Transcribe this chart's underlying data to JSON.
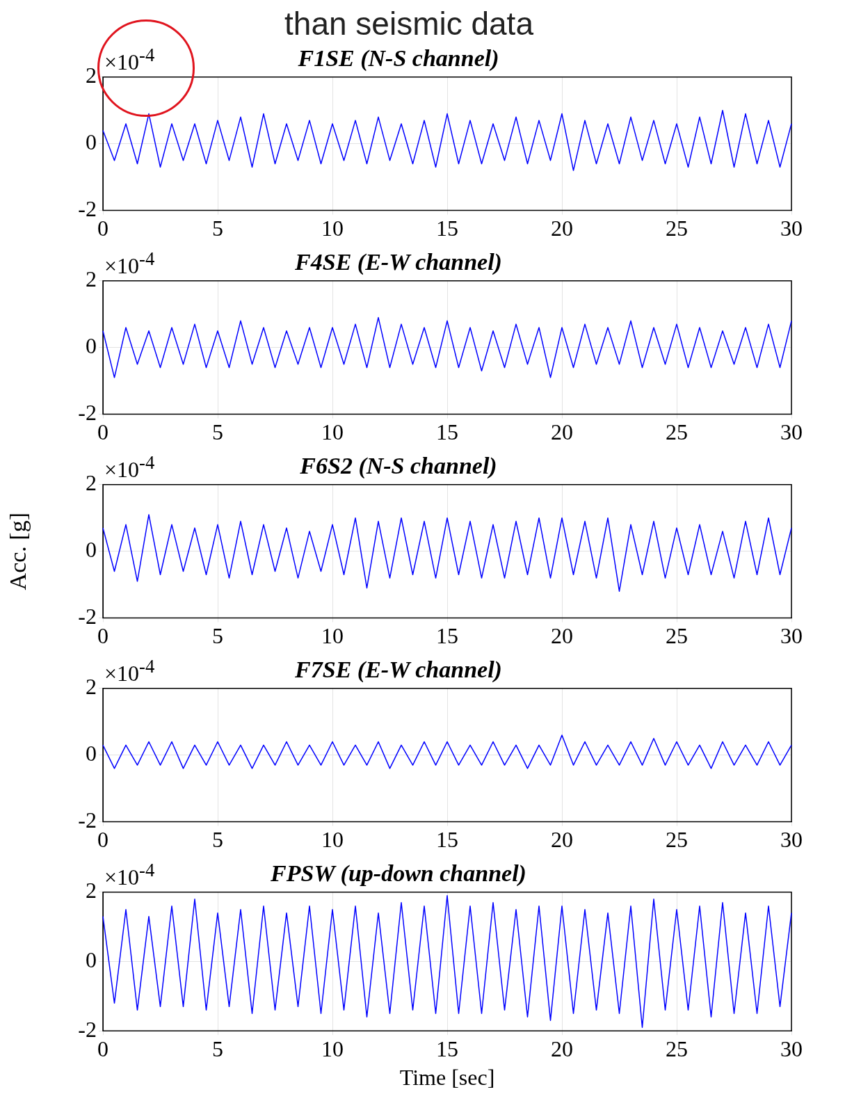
{
  "chart_data": [
    {
      "type": "line",
      "subtitle": "than seismic data",
      "title": "F1SE (N-S channel)",
      "annotations": [
        "×10$^{-4}$"
      ],
      "color": "#0000ff",
      "xlim": [
        0,
        30
      ],
      "ylim": [
        -2,
        2
      ],
      "xticks": [
        0,
        5,
        10,
        15,
        20,
        25,
        30
      ],
      "yticks": [
        -2,
        0,
        2
      ],
      "grid": true,
      "x": [
        0,
        0.5,
        1,
        1.5,
        2,
        2.5,
        3,
        3.5,
        4,
        4.5,
        5,
        5.5,
        6,
        6.5,
        7,
        7.5,
        8,
        8.5,
        9,
        9.5,
        10,
        10.5,
        11,
        11.5,
        12,
        12.5,
        13,
        13.5,
        14,
        14.5,
        15,
        15.5,
        16,
        16.5,
        17,
        17.5,
        18,
        18.5,
        19,
        19.5,
        20,
        20.5,
        21,
        21.5,
        22,
        22.5,
        23,
        23.5,
        24,
        24.5,
        25,
        25.5,
        26,
        26.5,
        27,
        27.5,
        28,
        28.5,
        29,
        29.5,
        30
      ],
      "values": [
        0.4,
        -0.5,
        0.6,
        -0.6,
        0.9,
        -0.7,
        0.6,
        -0.5,
        0.6,
        -0.6,
        0.7,
        -0.5,
        0.8,
        -0.7,
        0.9,
        -0.6,
        0.6,
        -0.5,
        0.7,
        -0.6,
        0.6,
        -0.5,
        0.7,
        -0.6,
        0.8,
        -0.5,
        0.6,
        -0.6,
        0.7,
        -0.7,
        0.9,
        -0.6,
        0.7,
        -0.6,
        0.6,
        -0.5,
        0.8,
        -0.6,
        0.7,
        -0.5,
        0.9,
        -0.8,
        0.7,
        -0.6,
        0.6,
        -0.6,
        0.8,
        -0.5,
        0.7,
        -0.6,
        0.6,
        -0.7,
        0.8,
        -0.6,
        1.0,
        -0.7,
        0.9,
        -0.6,
        0.7,
        -0.7,
        0.6
      ]
    },
    {
      "type": "line",
      "title": "F4SE (E-W channel)",
      "annotations": [
        "×10$^{-4}$"
      ],
      "color": "#0000ff",
      "xlim": [
        0,
        30
      ],
      "ylim": [
        -2,
        2
      ],
      "xticks": [
        0,
        5,
        10,
        15,
        20,
        25,
        30
      ],
      "yticks": [
        -2,
        0,
        2
      ],
      "grid": true,
      "x": [
        0,
        0.5,
        1,
        1.5,
        2,
        2.5,
        3,
        3.5,
        4,
        4.5,
        5,
        5.5,
        6,
        6.5,
        7,
        7.5,
        8,
        8.5,
        9,
        9.5,
        10,
        10.5,
        11,
        11.5,
        12,
        12.5,
        13,
        13.5,
        14,
        14.5,
        15,
        15.5,
        16,
        16.5,
        17,
        17.5,
        18,
        18.5,
        19,
        19.5,
        20,
        20.5,
        21,
        21.5,
        22,
        22.5,
        23,
        23.5,
        24,
        24.5,
        25,
        25.5,
        26,
        26.5,
        27,
        27.5,
        28,
        28.5,
        29,
        29.5,
        30
      ],
      "values": [
        0.5,
        -0.9,
        0.6,
        -0.5,
        0.5,
        -0.6,
        0.6,
        -0.5,
        0.7,
        -0.6,
        0.5,
        -0.6,
        0.8,
        -0.5,
        0.6,
        -0.6,
        0.5,
        -0.5,
        0.6,
        -0.6,
        0.6,
        -0.5,
        0.7,
        -0.6,
        0.9,
        -0.6,
        0.7,
        -0.5,
        0.6,
        -0.6,
        0.8,
        -0.6,
        0.6,
        -0.7,
        0.5,
        -0.6,
        0.7,
        -0.5,
        0.6,
        -0.9,
        0.6,
        -0.6,
        0.7,
        -0.5,
        0.6,
        -0.5,
        0.8,
        -0.6,
        0.6,
        -0.5,
        0.7,
        -0.6,
        0.6,
        -0.6,
        0.5,
        -0.5,
        0.6,
        -0.6,
        0.7,
        -0.6,
        0.8
      ]
    },
    {
      "type": "line",
      "title": "F6S2 (N-S channel)",
      "ylabel": "Acc. [g]",
      "annotations": [
        "×10$^{-4}$"
      ],
      "color": "#0000ff",
      "xlim": [
        0,
        30
      ],
      "ylim": [
        -2,
        2
      ],
      "xticks": [
        0,
        5,
        10,
        15,
        20,
        25,
        30
      ],
      "yticks": [
        -2,
        0,
        2
      ],
      "grid": true,
      "x": [
        0,
        0.5,
        1,
        1.5,
        2,
        2.5,
        3,
        3.5,
        4,
        4.5,
        5,
        5.5,
        6,
        6.5,
        7,
        7.5,
        8,
        8.5,
        9,
        9.5,
        10,
        10.5,
        11,
        11.5,
        12,
        12.5,
        13,
        13.5,
        14,
        14.5,
        15,
        15.5,
        16,
        16.5,
        17,
        17.5,
        18,
        18.5,
        19,
        19.5,
        20,
        20.5,
        21,
        21.5,
        22,
        22.5,
        23,
        23.5,
        24,
        24.5,
        25,
        25.5,
        26,
        26.5,
        27,
        27.5,
        28,
        28.5,
        29,
        29.5,
        30
      ],
      "values": [
        0.7,
        -0.6,
        0.8,
        -0.9,
        1.1,
        -0.7,
        0.8,
        -0.6,
        0.7,
        -0.7,
        0.8,
        -0.8,
        0.9,
        -0.7,
        0.8,
        -0.6,
        0.7,
        -0.8,
        0.6,
        -0.6,
        0.8,
        -0.7,
        1.0,
        -1.1,
        0.9,
        -0.8,
        1.0,
        -0.7,
        0.9,
        -0.8,
        1.0,
        -0.7,
        0.9,
        -0.8,
        0.8,
        -0.8,
        0.9,
        -0.7,
        1.0,
        -0.8,
        1.0,
        -0.7,
        0.9,
        -0.8,
        1.0,
        -1.2,
        0.8,
        -0.7,
        0.9,
        -0.8,
        0.7,
        -0.7,
        0.8,
        -0.7,
        0.6,
        -0.8,
        0.9,
        -0.7,
        1.0,
        -0.7,
        0.7
      ]
    },
    {
      "type": "line",
      "title": "F7SE (E-W channel)",
      "annotations": [
        "×10$^{-4}$"
      ],
      "color": "#0000ff",
      "xlim": [
        0,
        30
      ],
      "ylim": [
        -2,
        2
      ],
      "xticks": [
        0,
        5,
        10,
        15,
        20,
        25,
        30
      ],
      "yticks": [
        -2,
        0,
        2
      ],
      "grid": true,
      "x": [
        0,
        0.5,
        1,
        1.5,
        2,
        2.5,
        3,
        3.5,
        4,
        4.5,
        5,
        5.5,
        6,
        6.5,
        7,
        7.5,
        8,
        8.5,
        9,
        9.5,
        10,
        10.5,
        11,
        11.5,
        12,
        12.5,
        13,
        13.5,
        14,
        14.5,
        15,
        15.5,
        16,
        16.5,
        17,
        17.5,
        18,
        18.5,
        19,
        19.5,
        20,
        20.5,
        21,
        21.5,
        22,
        22.5,
        23,
        23.5,
        24,
        24.5,
        25,
        25.5,
        26,
        26.5,
        27,
        27.5,
        28,
        28.5,
        29,
        29.5,
        30
      ],
      "values": [
        0.3,
        -0.4,
        0.3,
        -0.3,
        0.4,
        -0.3,
        0.4,
        -0.4,
        0.3,
        -0.3,
        0.4,
        -0.3,
        0.3,
        -0.4,
        0.3,
        -0.3,
        0.4,
        -0.3,
        0.3,
        -0.3,
        0.4,
        -0.3,
        0.3,
        -0.3,
        0.4,
        -0.4,
        0.3,
        -0.3,
        0.4,
        -0.3,
        0.4,
        -0.3,
        0.3,
        -0.3,
        0.4,
        -0.3,
        0.3,
        -0.4,
        0.3,
        -0.3,
        0.6,
        -0.3,
        0.4,
        -0.3,
        0.3,
        -0.3,
        0.4,
        -0.3,
        0.5,
        -0.3,
        0.4,
        -0.3,
        0.3,
        -0.4,
        0.4,
        -0.3,
        0.3,
        -0.3,
        0.4,
        -0.3,
        0.3
      ]
    },
    {
      "type": "line",
      "title": "FPSW (up-down channel)",
      "xlabel": "Time [sec]",
      "annotations": [
        "×10$^{-4}$"
      ],
      "color": "#0000ff",
      "xlim": [
        0,
        30
      ],
      "ylim": [
        -2,
        2
      ],
      "xticks": [
        0,
        5,
        10,
        15,
        20,
        25,
        30
      ],
      "yticks": [
        -2,
        0,
        2
      ],
      "grid": true,
      "x": [
        0,
        0.5,
        1,
        1.5,
        2,
        2.5,
        3,
        3.5,
        4,
        4.5,
        5,
        5.5,
        6,
        6.5,
        7,
        7.5,
        8,
        8.5,
        9,
        9.5,
        10,
        10.5,
        11,
        11.5,
        12,
        12.5,
        13,
        13.5,
        14,
        14.5,
        15,
        15.5,
        16,
        16.5,
        17,
        17.5,
        18,
        18.5,
        19,
        19.5,
        20,
        20.5,
        21,
        21.5,
        22,
        22.5,
        23,
        23.5,
        24,
        24.5,
        25,
        25.5,
        26,
        26.5,
        27,
        27.5,
        28,
        28.5,
        29,
        29.5,
        30
      ],
      "values": [
        1.3,
        -1.2,
        1.5,
        -1.4,
        1.3,
        -1.3,
        1.6,
        -1.3,
        1.8,
        -1.4,
        1.4,
        -1.3,
        1.5,
        -1.5,
        1.6,
        -1.4,
        1.4,
        -1.3,
        1.6,
        -1.5,
        1.5,
        -1.4,
        1.6,
        -1.6,
        1.4,
        -1.5,
        1.7,
        -1.4,
        1.6,
        -1.5,
        1.9,
        -1.5,
        1.6,
        -1.5,
        1.7,
        -1.4,
        1.5,
        -1.6,
        1.6,
        -1.7,
        1.6,
        -1.5,
        1.5,
        -1.4,
        1.4,
        -1.5,
        1.6,
        -1.9,
        1.8,
        -1.4,
        1.5,
        -1.4,
        1.6,
        -1.6,
        1.7,
        -1.5,
        1.4,
        -1.5,
        1.6,
        -1.3,
        1.4
      ]
    }
  ]
}
